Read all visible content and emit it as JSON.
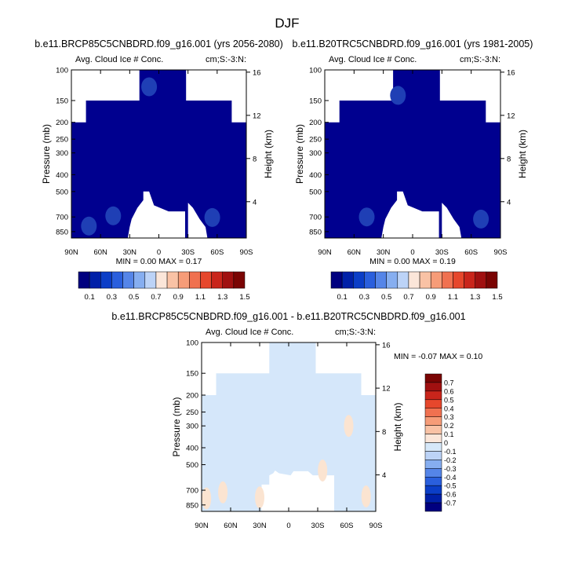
{
  "page_title": "DJF",
  "chart_data": [
    {
      "type": "contour",
      "title": "b.e11.BRCP85C5CNBDRD.f09_g16.001 (yrs 2056-2080)",
      "subtitle_left": "Avg. Cloud Ice # Conc.",
      "subtitle_right": "cm;S:-3:N:",
      "ylabel": "Pressure (mb)",
      "ylabel_right": "Height (km)",
      "x_ticks": [
        "90N",
        "60N",
        "30N",
        "0",
        "30S",
        "60S",
        "90S"
      ],
      "x_tick_values": [
        90,
        60,
        30,
        0,
        -30,
        -60,
        -90
      ],
      "y_ticks": [
        "100",
        "150",
        "200",
        "250",
        "300",
        "400",
        "500",
        "700",
        "850"
      ],
      "y_tick_values": [
        100,
        150,
        200,
        250,
        300,
        400,
        500,
        700,
        850
      ],
      "y_right_ticks": [
        "4",
        "8",
        "12",
        "16"
      ],
      "ylim": [
        100,
        925
      ],
      "xlim": [
        90,
        -90
      ],
      "min_label": "MIN =",
      "min_value": "0.00",
      "max_label": "MAX =",
      "max_value": "0.17",
      "stats": {
        "min": 0.0,
        "max": 0.17
      },
      "colorbar_labels": [
        "0.1",
        "0.3",
        "0.5",
        "0.7",
        "0.9",
        "1.1",
        "1.3",
        "1.5"
      ],
      "colorbar_colors": [
        "#00007f",
        "#0020a8",
        "#0b3ec7",
        "#2a5fdd",
        "#5585e8",
        "#86aef0",
        "#bcd3f7",
        "#fbe6d9",
        "#f9c2a5",
        "#f69c78",
        "#f07150",
        "#e6472c",
        "#c9251b",
        "#a01010",
        "#7a0403"
      ],
      "blobs": [
        {
          "lat": 47,
          "p": 690,
          "level": 0.15
        },
        {
          "lat": 72,
          "p": 790,
          "level": 0.12
        },
        {
          "lat": -55,
          "p": 705,
          "level": 0.12
        },
        {
          "lat": 10,
          "p": 125,
          "level": 0.12
        }
      ]
    },
    {
      "type": "contour",
      "title": "b.e11.B20TRC5CNBDRD.f09_g16.001 (yrs 1981-2005)",
      "subtitle_left": "Avg. Cloud Ice # Conc.",
      "subtitle_right": "cm;S:-3:N:",
      "ylabel": "Pressure (mb)",
      "ylabel_right": "Height (km)",
      "x_ticks": [
        "90N",
        "60N",
        "30N",
        "0",
        "30S",
        "60S",
        "90S"
      ],
      "x_tick_values": [
        90,
        60,
        30,
        0,
        -30,
        -60,
        -90
      ],
      "y_ticks": [
        "100",
        "150",
        "200",
        "250",
        "300",
        "400",
        "500",
        "700",
        "850"
      ],
      "y_tick_values": [
        100,
        150,
        200,
        250,
        300,
        400,
        500,
        700,
        850
      ],
      "y_right_ticks": [
        "4",
        "8",
        "12",
        "16"
      ],
      "ylim": [
        100,
        925
      ],
      "xlim": [
        90,
        -90
      ],
      "min_label": "MIN =",
      "min_value": "0.00",
      "max_label": "MAX =",
      "max_value": "0.19",
      "stats": {
        "min": 0.0,
        "max": 0.19
      },
      "colorbar_labels": [
        "0.1",
        "0.3",
        "0.5",
        "0.7",
        "0.9",
        "1.1",
        "1.3",
        "1.5"
      ],
      "colorbar_colors": [
        "#00007f",
        "#0020a8",
        "#0b3ec7",
        "#2a5fdd",
        "#5585e8",
        "#86aef0",
        "#bcd3f7",
        "#fbe6d9",
        "#f9c2a5",
        "#f69c78",
        "#f07150",
        "#e6472c",
        "#c9251b",
        "#a01010",
        "#7a0403"
      ],
      "blobs": [
        {
          "lat": 47,
          "p": 700,
          "level": 0.18
        },
        {
          "lat": -70,
          "p": 720,
          "level": 0.14
        },
        {
          "lat": 15,
          "p": 140,
          "level": 0.12
        }
      ]
    },
    {
      "type": "contour",
      "title": "b.e11.BRCP85C5CNBDRD.f09_g16.001 - b.e11.B20TRC5CNBDRD.f09_g16.001",
      "subtitle_left": "Avg. Cloud Ice # Conc.",
      "subtitle_right": "cm;S:-3:N:",
      "ylabel": "Pressure (mb)",
      "ylabel_right": "Height (km)",
      "x_ticks": [
        "90N",
        "60N",
        "30N",
        "0",
        "30S",
        "60S",
        "90S"
      ],
      "x_tick_values": [
        90,
        60,
        30,
        0,
        -30,
        -60,
        -90
      ],
      "y_ticks": [
        "100",
        "150",
        "200",
        "250",
        "300",
        "400",
        "500",
        "700",
        "850"
      ],
      "y_tick_values": [
        100,
        150,
        200,
        250,
        300,
        400,
        500,
        700,
        850
      ],
      "y_right_ticks": [
        "4",
        "8",
        "12",
        "16"
      ],
      "ylim": [
        100,
        925
      ],
      "xlim": [
        90,
        -90
      ],
      "min_label": "MIN =",
      "min_value": "-0.07",
      "max_label": "MAX =",
      "max_value": "0.10",
      "stats": {
        "min": -0.07,
        "max": 0.1
      },
      "colorbar_labels": [
        "0.7",
        "0.6",
        "0.5",
        "0.4",
        "0.3",
        "0.2",
        "0.1",
        "0",
        "-0.1",
        "-0.2",
        "-0.3",
        "-0.4",
        "-0.5",
        "-0.6",
        "-0.7"
      ],
      "colorbar_colors": [
        "#7a0403",
        "#a01010",
        "#c9251b",
        "#e6472c",
        "#f07150",
        "#f69c78",
        "#f9c2a5",
        "#fbe6d9",
        "#d6e8f9",
        "#bcd3f7",
        "#86aef0",
        "#5585e8",
        "#2a5fdd",
        "#0b3ec7",
        "#0020a8",
        "#00007f"
      ],
      "blobs": [
        {
          "lat": 85,
          "p": 780,
          "level": 0.05
        },
        {
          "lat": 68,
          "p": 720,
          "level": 0.05
        },
        {
          "lat": 30,
          "p": 770,
          "level": 0.04
        },
        {
          "lat": -62,
          "p": 300,
          "level": 0.04
        },
        {
          "lat": -80,
          "p": 760,
          "level": 0.05
        },
        {
          "lat": -35,
          "p": 540,
          "level": 0.03
        }
      ]
    }
  ]
}
